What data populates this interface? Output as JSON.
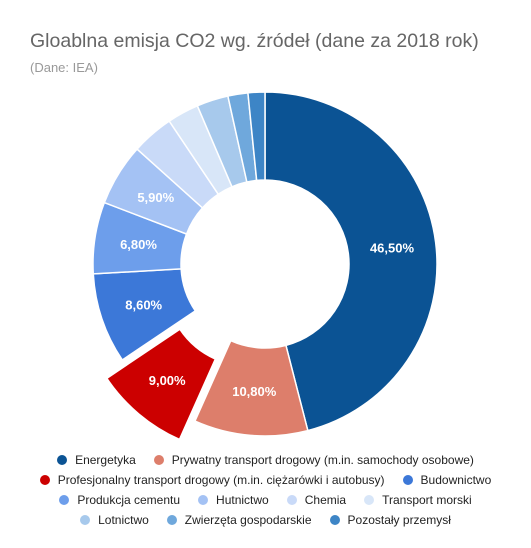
{
  "chart_data": {
    "type": "pie",
    "title": "Gloablna emisja CO2 wg. źródeł (dane za 2018 rok)",
    "subtitle": "(Dane: IEA)",
    "donut": true,
    "legend_position": "bottom",
    "slices": [
      {
        "name": "Energetyka",
        "value": 46.5,
        "label": "46,50%",
        "color": "#0b5394"
      },
      {
        "name": "Prywatny transport drogowy (m.in. samochody osobowe)",
        "value": 10.8,
        "label": "10,80%",
        "color": "#dd7e6b"
      },
      {
        "name": "Profesjonalny transport drogowy (m.in. ciężarówki i autobusy)",
        "value": 9.0,
        "label": "9,00%",
        "color": "#cc0000",
        "exploded": true
      },
      {
        "name": "Budownictwo",
        "value": 8.6,
        "label": "8,60%",
        "color": "#3c78d8"
      },
      {
        "name": "Produkcja cementu",
        "value": 6.8,
        "label": "6,80%",
        "color": "#6d9eeb"
      },
      {
        "name": "Hutnictwo",
        "value": 5.9,
        "label": "5,90%",
        "color": "#a4c2f4"
      },
      {
        "name": "Chemia",
        "value": 4.0,
        "label": "",
        "color": "#c9daf8"
      },
      {
        "name": "Transport morski",
        "value": 3.0,
        "label": "",
        "color": "#d8e6f8"
      },
      {
        "name": "Lotnictwo",
        "value": 3.0,
        "label": "",
        "color": "#a7c9ec"
      },
      {
        "name": "Zwierzęta gospodarskie",
        "value": 1.9,
        "label": "",
        "color": "#6fa8dc"
      },
      {
        "name": "Pozostały przemysł",
        "value": 1.6,
        "label": "",
        "color": "#3d85c6"
      }
    ]
  }
}
